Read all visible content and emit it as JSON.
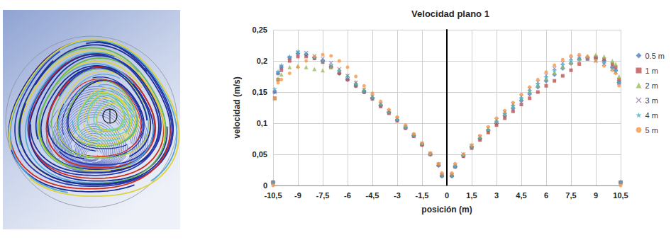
{
  "chart_data": {
    "type": "scatter",
    "title": "Velocidad plano 1",
    "x_label": "posición (m)",
    "y_label": "velocidad (m/s)",
    "x": [
      -10.5,
      -10.4,
      -10.2,
      -10,
      -9.5,
      -9,
      -8.5,
      -8,
      -7.5,
      -7,
      -6.5,
      -6,
      -5.5,
      -5,
      -4.5,
      -4,
      -3.5,
      -3,
      -2.5,
      -2,
      -1.5,
      -1,
      -0.5,
      -0.3,
      0.3,
      0.5,
      1,
      1.5,
      2,
      2.5,
      3,
      3.5,
      4,
      4.5,
      5,
      5.5,
      6,
      6.5,
      7,
      7.5,
      8,
      8.5,
      9,
      9.5,
      10,
      10.2,
      10.4,
      10.5
    ],
    "xlim": [
      -10.5,
      10.5
    ],
    "xticks": [
      {
        "value": -10.5,
        "label": "-10,5"
      },
      -9,
      {
        "value": -7.5,
        "label": "-7,5"
      },
      -6,
      {
        "value": -4.5,
        "label": "-4,5"
      },
      -3,
      {
        "value": -1.5,
        "label": "-1,5"
      },
      0,
      {
        "value": 1.5,
        "label": "1,5"
      },
      3,
      {
        "value": 4.5,
        "label": "4,5"
      },
      6,
      {
        "value": 7.5,
        "label": "7,5"
      },
      9,
      {
        "value": 10.5,
        "label": "10,5"
      }
    ],
    "ylim": [
      0,
      0.25
    ],
    "yticks": [
      0,
      {
        "value": 0.05,
        "label": "0,05"
      },
      {
        "value": 0.1,
        "label": "0,1"
      },
      {
        "value": 0.15,
        "label": "0,15"
      },
      {
        "value": 0.2,
        "label": "0,2"
      },
      {
        "value": 0.25,
        "label": "0,25"
      }
    ],
    "grid": true,
    "legend": "right",
    "series": [
      {
        "name": "0.5 m",
        "color": "#4f81bd",
        "marker": "diamond",
        "values": [
          0.005,
          0.15,
          0.18,
          0.19,
          0.205,
          0.212,
          0.21,
          0.205,
          0.2,
          0.19,
          0.18,
          0.17,
          0.16,
          0.15,
          0.14,
          0.128,
          0.117,
          0.105,
          0.093,
          0.08,
          0.066,
          0.05,
          0.032,
          0.015,
          0.015,
          0.03,
          0.048,
          0.062,
          0.075,
          0.088,
          0.1,
          0.112,
          0.124,
          0.136,
          0.147,
          0.158,
          0.168,
          0.178,
          0.188,
          0.196,
          0.202,
          0.205,
          0.205,
          0.2,
          0.19,
          0.185,
          0.165,
          0.005
        ]
      },
      {
        "name": "1 m",
        "color": "#c0504d",
        "marker": "square",
        "values": [
          0.005,
          0.14,
          0.17,
          0.185,
          0.2,
          0.207,
          0.207,
          0.204,
          0.198,
          0.19,
          0.18,
          0.17,
          0.16,
          0.15,
          0.139,
          0.127,
          0.116,
          0.104,
          0.092,
          0.079,
          0.065,
          0.05,
          0.033,
          0.016,
          0.016,
          0.03,
          0.047,
          0.06,
          0.073,
          0.085,
          0.097,
          0.108,
          0.119,
          0.13,
          0.14,
          0.15,
          0.16,
          0.168,
          0.176,
          0.185,
          0.195,
          0.203,
          0.206,
          0.203,
          0.195,
          0.19,
          0.17,
          0.005
        ]
      },
      {
        "name": "2 m",
        "color": "#9bbb59",
        "marker": "triangle",
        "values": [
          0.005,
          0.14,
          0.172,
          0.178,
          0.19,
          0.192,
          0.19,
          0.187,
          0.185,
          0.19,
          0.186,
          0.177,
          0.166,
          0.155,
          0.144,
          0.132,
          0.12,
          0.108,
          0.095,
          0.082,
          0.068,
          0.052,
          0.035,
          0.018,
          0.018,
          0.033,
          0.05,
          0.064,
          0.078,
          0.091,
          0.104,
          0.116,
          0.128,
          0.14,
          0.151,
          0.162,
          0.172,
          0.181,
          0.19,
          0.197,
          0.203,
          0.208,
          0.21,
          0.207,
          0.2,
          0.195,
          0.175,
          0.005
        ]
      },
      {
        "name": "3 m",
        "color": "#8064a2",
        "marker": "x",
        "values": [
          0.005,
          0.15,
          0.18,
          0.19,
          0.205,
          0.214,
          0.213,
          0.208,
          0.204,
          0.197,
          0.187,
          0.176,
          0.165,
          0.154,
          0.143,
          0.131,
          0.119,
          0.107,
          0.094,
          0.081,
          0.067,
          0.051,
          0.034,
          0.017,
          0.017,
          0.032,
          0.05,
          0.064,
          0.078,
          0.092,
          0.105,
          0.118,
          0.131,
          0.143,
          0.155,
          0.166,
          0.177,
          0.188,
          0.197,
          0.204,
          0.206,
          0.204,
          0.2,
          0.195,
          0.187,
          0.182,
          0.165,
          0.005
        ]
      },
      {
        "name": "4 m",
        "color": "#4bacc6",
        "marker": "star",
        "values": [
          0.005,
          0.155,
          0.183,
          0.193,
          0.207,
          0.215,
          0.212,
          0.206,
          0.2,
          0.193,
          0.184,
          0.174,
          0.163,
          0.152,
          0.141,
          0.13,
          0.118,
          0.106,
          0.094,
          0.081,
          0.067,
          0.051,
          0.034,
          0.016,
          0.016,
          0.031,
          0.049,
          0.063,
          0.077,
          0.09,
          0.103,
          0.116,
          0.128,
          0.14,
          0.152,
          0.163,
          0.174,
          0.185,
          0.194,
          0.201,
          0.205,
          0.205,
          0.202,
          0.196,
          0.188,
          0.183,
          0.165,
          0.005
        ]
      },
      {
        "name": "5 m",
        "color": "#f79646",
        "marker": "circle",
        "values": [
          0.0,
          0.14,
          0.165,
          0.17,
          0.18,
          0.19,
          0.2,
          0.207,
          0.21,
          0.208,
          0.2,
          0.19,
          0.175,
          0.16,
          0.148,
          0.135,
          0.122,
          0.11,
          0.097,
          0.083,
          0.068,
          0.052,
          0.035,
          0.02,
          0.02,
          0.035,
          0.05,
          0.065,
          0.08,
          0.094,
          0.108,
          0.12,
          0.133,
          0.146,
          0.158,
          0.17,
          0.182,
          0.193,
          0.202,
          0.208,
          0.21,
          0.207,
          0.2,
          0.192,
          0.185,
          0.18,
          0.16,
          0.0
        ]
      }
    ]
  }
}
